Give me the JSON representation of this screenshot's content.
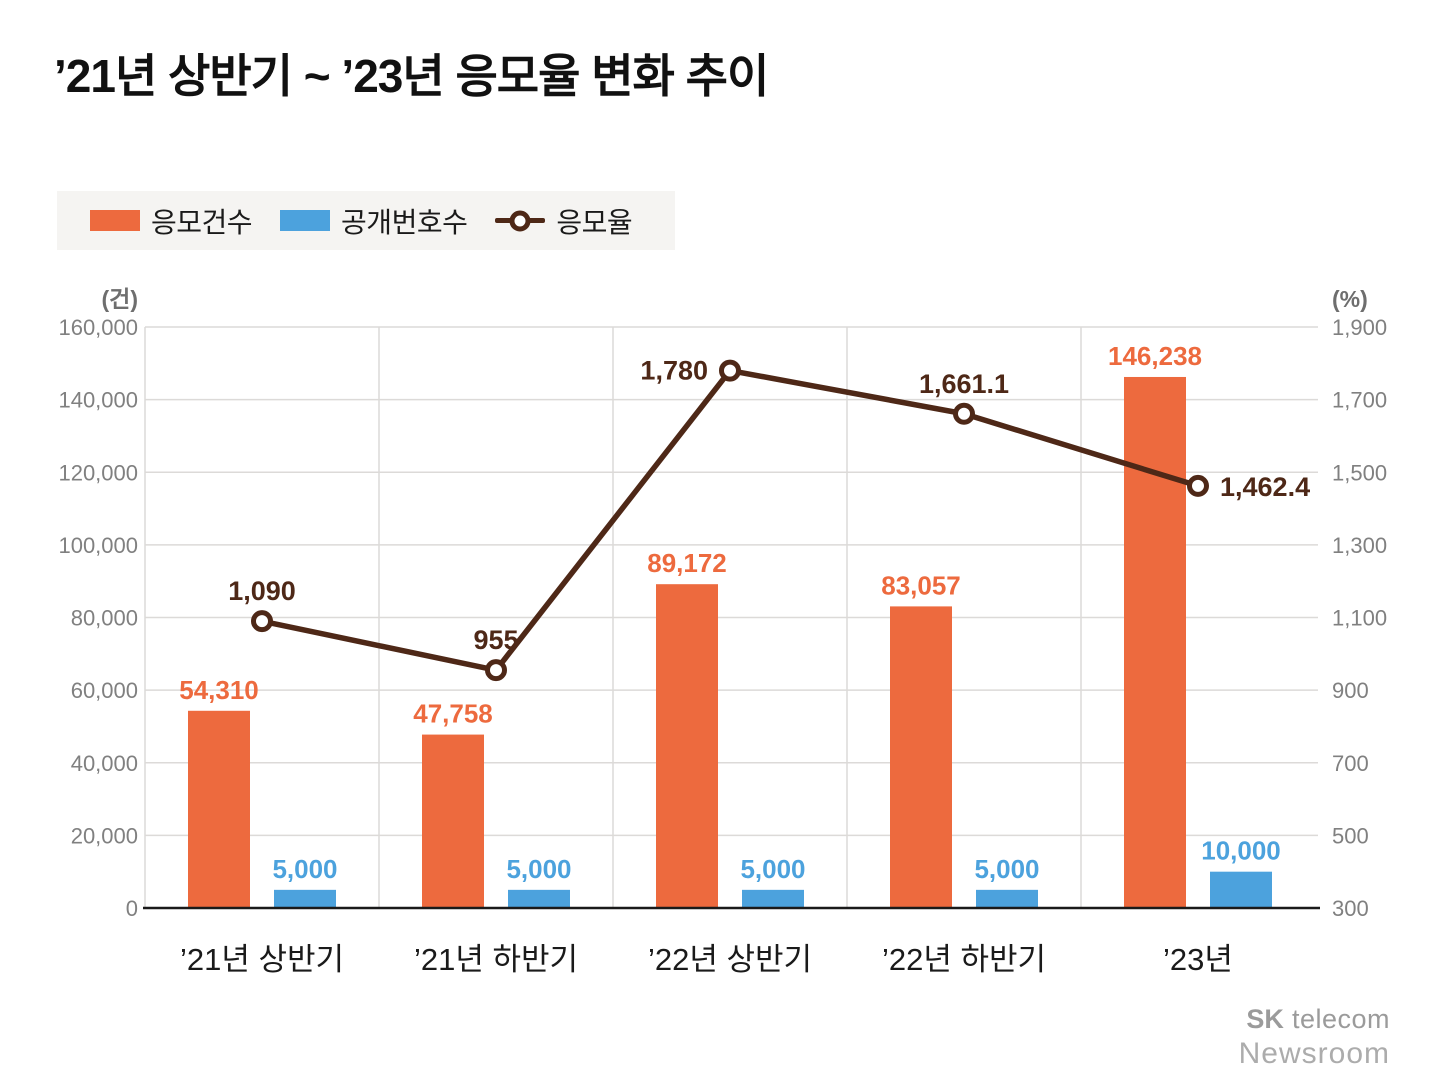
{
  "title": {
    "text": "’21년 상반기 ~ ’23년 응모율 변화 추이"
  },
  "legend": {
    "items": [
      {
        "label": "응모건수",
        "type": "bar",
        "color": "#ed6a3e"
      },
      {
        "label": "공개번호수",
        "type": "bar",
        "color": "#4ca2dd"
      },
      {
        "label": "응모율",
        "type": "line",
        "color": "#4e2817"
      }
    ]
  },
  "chart_data": {
    "type": "combo-bar-line",
    "categories": [
      "’21년 상반기",
      "’21년 하반기",
      "’22년 상반기",
      "’22년 하반기",
      "’23년"
    ],
    "bar_series": [
      {
        "name": "응모건수",
        "axis": "left",
        "color": "#ed6a3e",
        "values": [
          54310,
          47758,
          89172,
          83057,
          146238
        ],
        "labels": [
          "54,310",
          "47,758",
          "89,172",
          "83,057",
          "146,238"
        ]
      },
      {
        "name": "공개번호수",
        "axis": "left",
        "color": "#4ca2dd",
        "values": [
          5000,
          5000,
          5000,
          5000,
          10000
        ],
        "labels": [
          "5,000",
          "5,000",
          "5,000",
          "5,000",
          "10,000"
        ]
      }
    ],
    "line_series": {
      "name": "응모율",
      "axis": "right",
      "color": "#4e2817",
      "values": [
        1090,
        955,
        1780,
        1661.1,
        1462.4
      ],
      "labels": [
        "1,090",
        "955",
        "1,780",
        "1,661.1",
        "1,462.4"
      ],
      "label_positions": [
        "above",
        "above",
        "left",
        "above",
        "right"
      ]
    },
    "left_axis": {
      "unit": "(건)",
      "min": 0,
      "max": 160000,
      "tick_step": 20000,
      "ticks": [
        "0",
        "20,000",
        "40,000",
        "60,000",
        "80,000",
        "100,000",
        "120,000",
        "140,000",
        "160,000"
      ]
    },
    "right_axis": {
      "unit": "(%)",
      "min": 300,
      "max": 1900,
      "tick_step": 200,
      "ticks": [
        "300",
        "500",
        "700",
        "900",
        "1,100",
        "1,300",
        "1,500",
        "1,700",
        "1,900"
      ]
    },
    "grid": true,
    "legend_position": "top-left"
  },
  "colors": {
    "grid": "#dcdad8",
    "axis_text": "#808080",
    "unit_text": "#6e6e6e",
    "baseline": "#1a1a1a",
    "category_text": "#1a1a1a",
    "legend_bg": "#f5f4f2"
  },
  "footer": {
    "brand_bold": "SK",
    "brand_rest": "telecom",
    "newsroom": "Newsroom"
  }
}
